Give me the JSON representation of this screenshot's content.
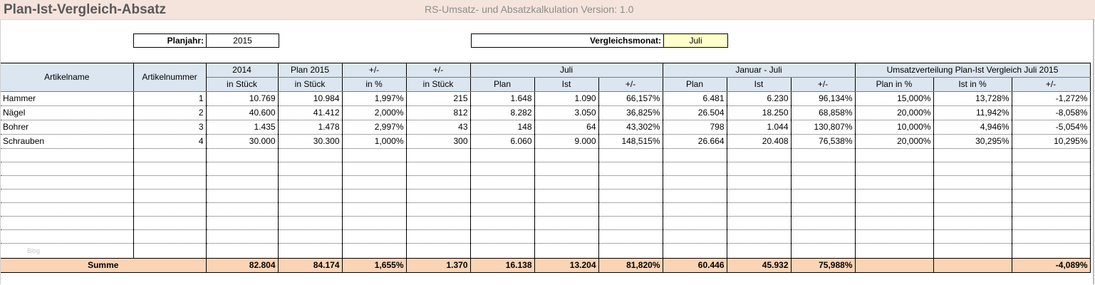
{
  "header": {
    "title": "Plan-Ist-Vergleich-Absatz",
    "subtitle": "RS-Umsatz- und Absatzkalkulation Version:  1.0"
  },
  "fields": {
    "planjahr_label": "Planjahr:",
    "planjahr_value": "2015",
    "vergleichsmonat_label": "Vergleichsmonat:",
    "vergleichsmonat_value": "Juli"
  },
  "table": {
    "group_headers": {
      "artikelname": "Artikelname",
      "artikelnummer": "Artikelnummer",
      "y2014": "2014",
      "plan2015": "Plan 2015",
      "diff1": "+/-",
      "diff2": "+/-",
      "juli": "Juli",
      "jan_juli": "Januar - Juli",
      "umsatz": "Umsatzverteilung Plan-Ist Vergleich Juli 2015"
    },
    "sub_headers": [
      "in Stück",
      "in Stück",
      "in %",
      "in Stück",
      "Plan",
      "Ist",
      "+/-",
      "Plan",
      "Ist",
      "+/-",
      "Plan in %",
      "Ist in %",
      "+/-"
    ],
    "rows": [
      [
        "Hammer",
        "1",
        "10.769",
        "10.984",
        "1,997%",
        "215",
        "1.648",
        "1.090",
        "66,157%",
        "6.481",
        "6.230",
        "96,134%",
        "15,000%",
        "13,728%",
        "-1,272%"
      ],
      [
        "Nägel",
        "2",
        "40.600",
        "41.412",
        "2,000%",
        "812",
        "8.282",
        "3.050",
        "36,825%",
        "26.504",
        "18.250",
        "68,858%",
        "20,000%",
        "11,942%",
        "-8,058%"
      ],
      [
        "Bohrer",
        "3",
        "1.435",
        "1.478",
        "2,997%",
        "43",
        "148",
        "64",
        "43,302%",
        "798",
        "1.044",
        "130,807%",
        "10,000%",
        "4,946%",
        "-5,054%"
      ],
      [
        "Schrauben",
        "4",
        "30.000",
        "30.300",
        "1,000%",
        "300",
        "6.060",
        "9.000",
        "148,515%",
        "26.664",
        "20.408",
        "76,538%",
        "20,000%",
        "30,295%",
        "10,295%"
      ]
    ],
    "watermark": "Blog",
    "sum": [
      "Summe",
      "",
      "82.804",
      "84.174",
      "1,655%",
      "1.370",
      "16.138",
      "13.204",
      "81,820%",
      "60.446",
      "45.932",
      "75,988%",
      "",
      "",
      "-4,089%"
    ]
  },
  "colors": {
    "title_band": "#f5e4dc",
    "header_fill": "#dce6f1",
    "sum_fill": "#fbd4b4",
    "input_fill": "#ffffcc"
  }
}
